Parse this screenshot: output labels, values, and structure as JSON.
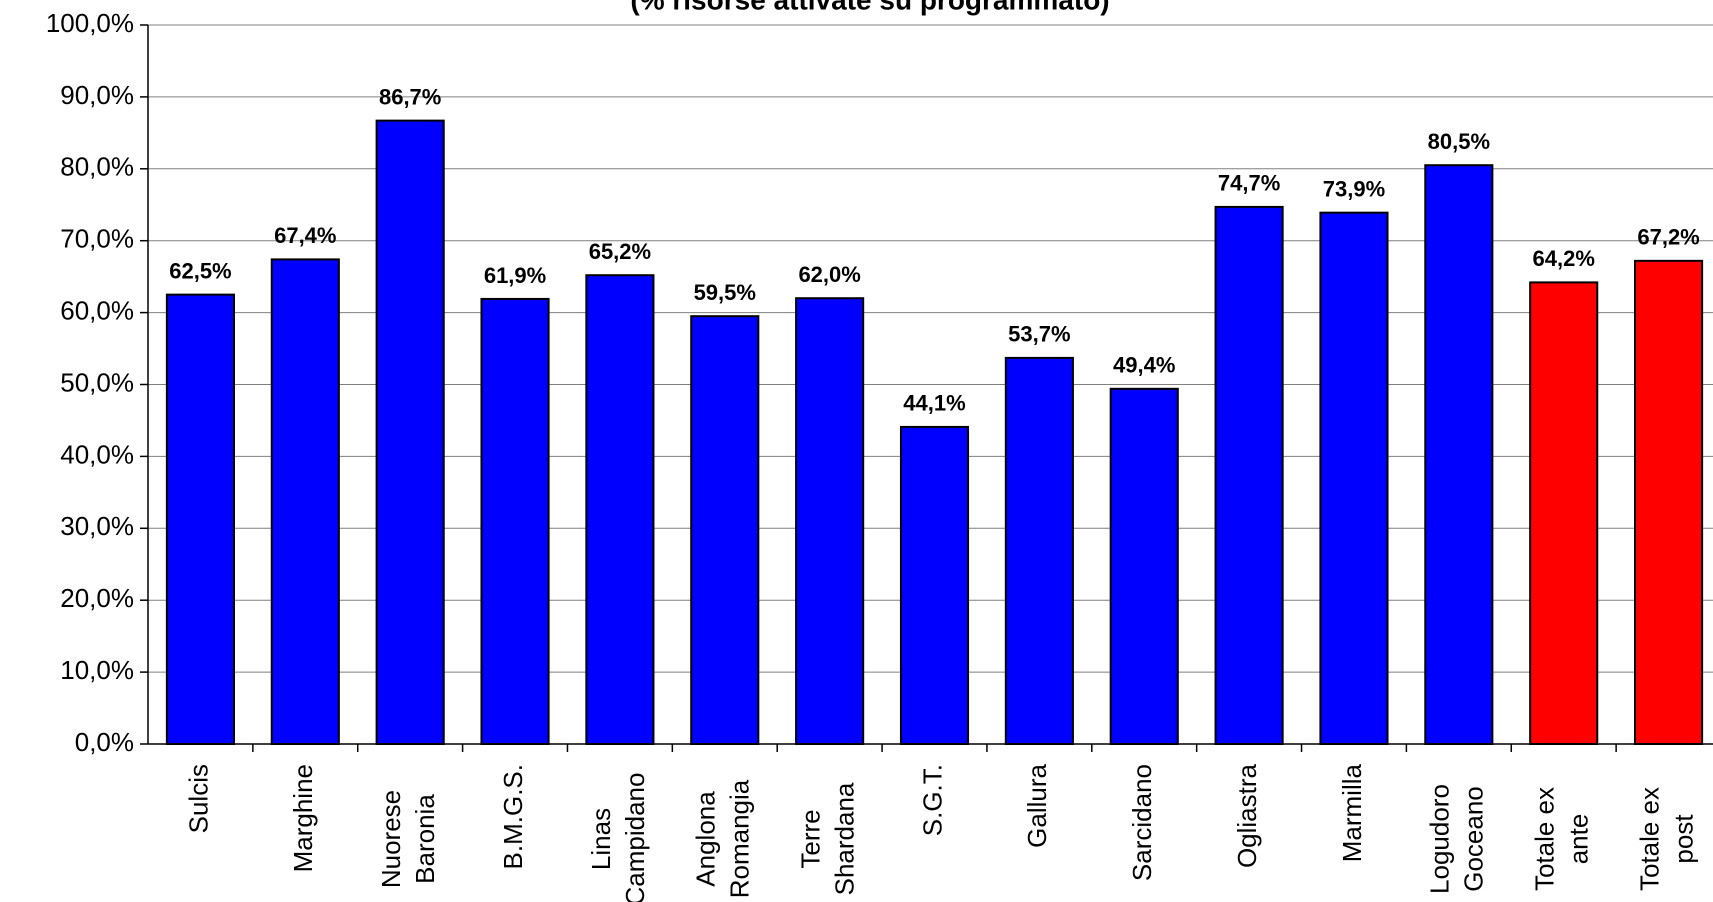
{
  "chart_data": {
    "type": "bar",
    "title": "(% risorse attivate su programmato)",
    "categories": [
      [
        "Sulcis"
      ],
      [
        "Marghine"
      ],
      [
        "Nuorese",
        "Baronia"
      ],
      [
        "B.M.G.S."
      ],
      [
        "Linas",
        "Campidano"
      ],
      [
        "Anglona",
        "Romangia"
      ],
      [
        "Terre",
        "Shardana"
      ],
      [
        "S.G.T."
      ],
      [
        "Gallura"
      ],
      [
        "Sarcidano"
      ],
      [
        "Ogliastra"
      ],
      [
        "Marmilla"
      ],
      [
        "Logudoro",
        "Goceano"
      ],
      [
        "Totale ex",
        "ante"
      ],
      [
        "Totale ex",
        "post"
      ]
    ],
    "values": [
      62.5,
      67.4,
      86.7,
      61.9,
      65.2,
      59.5,
      62.0,
      44.1,
      53.7,
      49.4,
      74.7,
      73.9,
      80.5,
      64.2,
      67.2
    ],
    "value_labels": [
      "62,5%",
      "67,4%",
      "86,7%",
      "61,9%",
      "65,2%",
      "59,5%",
      "62,0%",
      "44,1%",
      "53,7%",
      "49,4%",
      "74,7%",
      "73,9%",
      "80,5%",
      "64,2%",
      "67,2%"
    ],
    "colors": [
      "#0000ff",
      "#0000ff",
      "#0000ff",
      "#0000ff",
      "#0000ff",
      "#0000ff",
      "#0000ff",
      "#0000ff",
      "#0000ff",
      "#0000ff",
      "#0000ff",
      "#0000ff",
      "#0000ff",
      "#ff0000",
      "#ff0000"
    ],
    "ylim": [
      0,
      100
    ],
    "yticks": [
      {
        "value": 0,
        "label": "0,0%"
      },
      {
        "value": 10,
        "label": "10,0%"
      },
      {
        "value": 20,
        "label": "20,0%"
      },
      {
        "value": 30,
        "label": "30,0%"
      },
      {
        "value": 40,
        "label": "40,0%"
      },
      {
        "value": 50,
        "label": "50,0%"
      },
      {
        "value": 60,
        "label": "60,0%"
      },
      {
        "value": 70,
        "label": "70,0%"
      },
      {
        "value": 80,
        "label": "80,0%"
      },
      {
        "value": 90,
        "label": "90,0%"
      },
      {
        "value": 100,
        "label": "100,0%"
      }
    ],
    "grid": true
  }
}
